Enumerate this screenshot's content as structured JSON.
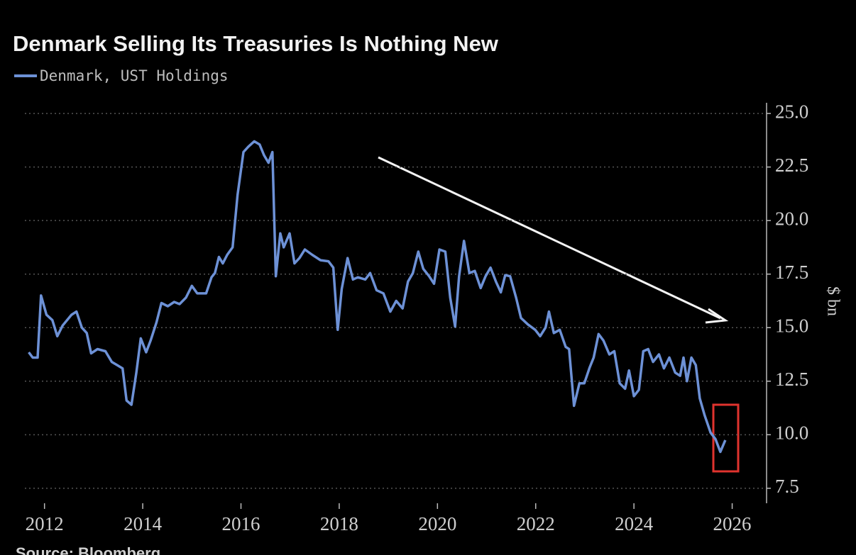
{
  "chart_data": {
    "type": "line",
    "title": "Denmark Selling Its Treasuries Is Nothing New",
    "y_label": "$ bn",
    "source": "Source: Bloomberg",
    "x": [
      2011.68,
      2011.76,
      2011.86,
      2011.93,
      2012.04,
      2012.16,
      2012.26,
      2012.37,
      2012.55,
      2012.65,
      2012.76,
      2012.86,
      2012.95,
      2013.08,
      2013.24,
      2013.37,
      2013.48,
      2013.59,
      2013.67,
      2013.77,
      2013.87,
      2013.96,
      2014.07,
      2014.16,
      2014.28,
      2014.38,
      2014.51,
      2014.64,
      2014.75,
      2014.88,
      2015.0,
      2015.11,
      2015.29,
      2015.4,
      2015.47,
      2015.55,
      2015.63,
      2015.72,
      2015.83,
      2015.93,
      2016.05,
      2016.15,
      2016.27,
      2016.38,
      2016.47,
      2016.56,
      2016.64,
      2016.71,
      2016.8,
      2016.87,
      2016.99,
      2017.09,
      2017.19,
      2017.3,
      2017.45,
      2017.62,
      2017.78,
      2017.88,
      2017.97,
      2018.05,
      2018.17,
      2018.28,
      2018.38,
      2018.53,
      2018.63,
      2018.76,
      2018.9,
      2019.04,
      2019.16,
      2019.29,
      2019.4,
      2019.5,
      2019.61,
      2019.71,
      2019.83,
      2019.93,
      2020.04,
      2020.16,
      2020.26,
      2020.36,
      2020.44,
      2020.54,
      2020.65,
      2020.76,
      2020.88,
      2020.98,
      2021.08,
      2021.19,
      2021.29,
      2021.38,
      2021.48,
      2021.6,
      2021.7,
      2021.84,
      2021.99,
      2022.09,
      2022.2,
      2022.27,
      2022.37,
      2022.49,
      2022.61,
      2022.68,
      2022.78,
      2022.89,
      2022.99,
      2023.1,
      2023.18,
      2023.28,
      2023.38,
      2023.5,
      2023.6,
      2023.71,
      2023.82,
      2023.9,
      2024.0,
      2024.1,
      2024.19,
      2024.29,
      2024.39,
      2024.51,
      2024.61,
      2024.72,
      2024.84,
      2024.94,
      2025.01,
      2025.08,
      2025.17,
      2025.26,
      2025.34,
      2025.44,
      2025.56,
      2025.66,
      2025.76,
      2025.86
    ],
    "series": [
      {
        "name": "Denmark, UST Holdings",
        "color": "#6d91d6",
        "values": [
          13.85,
          13.6,
          13.6,
          16.5,
          15.6,
          15.35,
          14.6,
          15.1,
          15.6,
          15.75,
          15.0,
          14.75,
          13.8,
          14.0,
          13.9,
          13.4,
          13.25,
          13.1,
          11.6,
          11.4,
          12.9,
          14.5,
          13.85,
          14.4,
          15.25,
          16.15,
          16.0,
          16.2,
          16.1,
          16.4,
          16.95,
          16.6,
          16.6,
          17.35,
          17.55,
          18.3,
          18.0,
          18.4,
          18.75,
          21.2,
          23.2,
          23.45,
          23.7,
          23.55,
          23.05,
          22.7,
          23.2,
          17.4,
          19.4,
          18.75,
          19.4,
          18.0,
          18.25,
          18.65,
          18.4,
          18.15,
          18.1,
          17.8,
          14.9,
          16.8,
          18.25,
          17.25,
          17.35,
          17.25,
          17.55,
          16.75,
          16.6,
          15.75,
          16.25,
          15.9,
          17.15,
          17.55,
          18.55,
          17.75,
          17.4,
          17.05,
          18.65,
          18.55,
          16.4,
          15.05,
          17.4,
          19.05,
          17.55,
          17.65,
          16.85,
          17.4,
          17.8,
          17.15,
          16.65,
          17.45,
          17.4,
          16.4,
          15.45,
          15.15,
          14.9,
          14.6,
          15.0,
          15.75,
          14.75,
          14.9,
          14.1,
          14.0,
          11.35,
          12.4,
          12.4,
          13.15,
          13.6,
          14.7,
          14.4,
          13.75,
          13.9,
          12.4,
          12.15,
          13.0,
          11.8,
          12.1,
          13.9,
          14.0,
          13.4,
          13.75,
          13.1,
          13.6,
          12.9,
          12.75,
          13.6,
          12.5,
          13.6,
          13.25,
          11.7,
          10.9,
          10.1,
          9.8,
          9.2,
          9.75
        ]
      }
    ],
    "xlim": [
      2011.6,
      2026.7
    ],
    "xticks": [
      2012,
      2014,
      2016,
      2018,
      2020,
      2022,
      2024,
      2026
    ],
    "ylim": [
      6.8,
      25.5
    ],
    "yticks": [
      {
        "value": 7.5,
        "label": "7.5"
      },
      {
        "value": 10,
        "label": "10.0"
      },
      {
        "value": 12.5,
        "label": "12.5"
      },
      {
        "value": 15,
        "label": "15.0"
      },
      {
        "value": 17.5,
        "label": "17.5"
      },
      {
        "value": 20,
        "label": "20.0"
      },
      {
        "value": 22.5,
        "label": "22.5"
      },
      {
        "value": 25,
        "label": "25.0"
      }
    ],
    "grid": true
  }
}
